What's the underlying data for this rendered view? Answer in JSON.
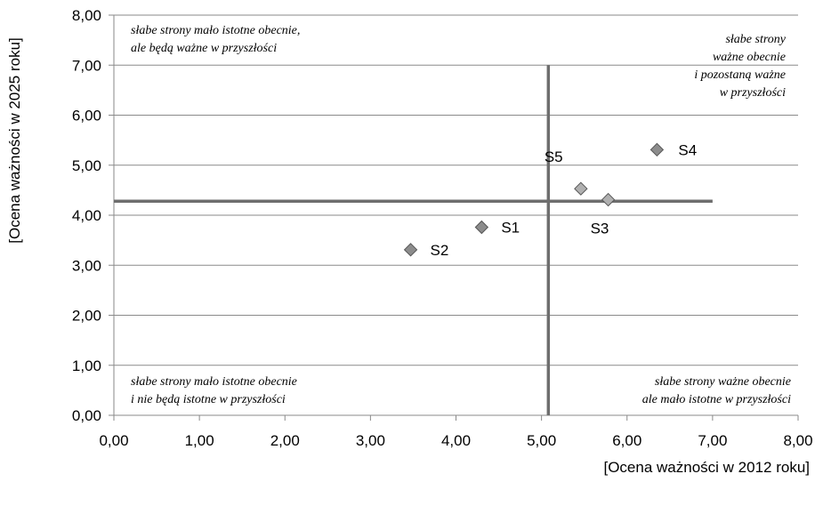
{
  "chart_data": {
    "type": "scatter",
    "title": "",
    "xlabel": "[Ocena  ważności w 2012 roku]",
    "ylabel": "[Ocena  ważności w 2025 roku]",
    "xlim": [
      0,
      8
    ],
    "ylim": [
      0,
      8
    ],
    "x_ticks": [
      "0,00",
      "1,00",
      "2,00",
      "3,00",
      "4,00",
      "5,00",
      "6,00",
      "7,00",
      "8,00"
    ],
    "y_ticks": [
      "0,00",
      "1,00",
      "2,00",
      "3,00",
      "4,00",
      "5,00",
      "6,00",
      "7,00",
      "8,00"
    ],
    "grid": "horizontal",
    "points": [
      {
        "label": "S1",
        "x": 4.3,
        "y": 3.76,
        "color": "#8c8c8c"
      },
      {
        "label": "S2",
        "x": 3.47,
        "y": 3.31,
        "color": "#8c8c8c"
      },
      {
        "label": "S3",
        "x": 5.78,
        "y": 4.31,
        "color": "#b0b0b0"
      },
      {
        "label": "S4",
        "x": 6.35,
        "y": 5.31,
        "color": "#8c8c8c"
      },
      {
        "label": "S5",
        "x": 5.46,
        "y": 4.53,
        "color": "#b0b0b0"
      }
    ],
    "divider": {
      "x": 5.08,
      "y": 4.28,
      "x_end": 7.0,
      "y_top": 7.0,
      "color": "#6e6e6e"
    },
    "quadrants": {
      "top_left": [
        "słabe strony mało istotne obecnie,",
        "ale będą ważne w przyszłości"
      ],
      "top_right": [
        "słabe strony",
        "ważne obecnie",
        "i pozostaną ważne",
        "w przyszłości"
      ],
      "bottom_left": [
        "słabe strony mało istotne obecnie",
        "i nie będą istotne w przyszłości"
      ],
      "bottom_right": [
        "słabe strony ważne obecnie",
        "ale mało istotne w przyszłości"
      ]
    }
  }
}
